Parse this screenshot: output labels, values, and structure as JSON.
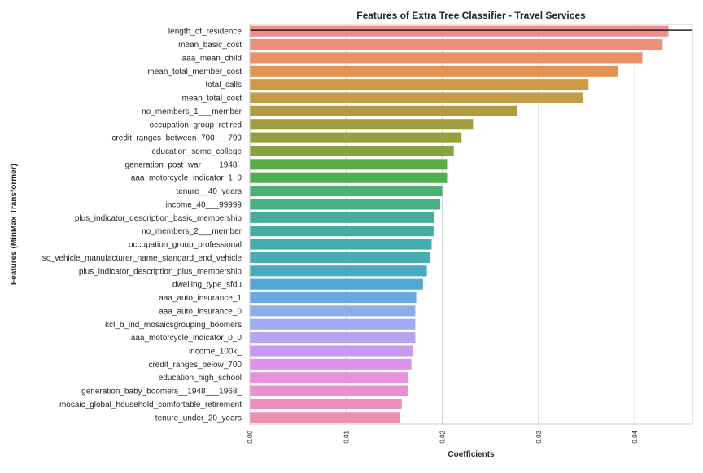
{
  "chart_data": {
    "type": "bar",
    "orientation": "horizontal",
    "title": "Features of Extra Tree Classifier - Travel Services",
    "xlabel": "Coefficients",
    "ylabel": "Features (MinMax Transformer)",
    "xlim": [
      0.0,
      0.046
    ],
    "xticks": [
      0.0,
      0.01,
      0.02,
      0.03,
      0.04
    ],
    "xtick_labels": [
      "0.00",
      "0.01",
      "0.02",
      "0.03",
      "0.04"
    ],
    "grid": true,
    "reference_line": {
      "type": "horizontal",
      "category": "length_of_residence",
      "color": "#222222"
    },
    "categories": [
      "length_of_residence",
      "mean_basic_cost",
      "aaa_mean_child",
      "mean_total_member_cost",
      "total_calls",
      "mean_total_cost",
      "no_members_1___member",
      "occupation_group_retired",
      "credit_ranges_between_700___799",
      "education_some_college",
      "generation_post_war____1948_",
      "aaa_motorcycle_indicator_1_0",
      "tenure__40_years",
      "income_40___99999",
      "plus_indicator_description_basic_membership",
      "no_members_2___member",
      "occupation_group_professional",
      "sc_vehicle_manufacturer_name_standard_end_vehicle",
      "plus_indicator_description_plus_membership",
      "dwelling_type_sfdu",
      "aaa_auto_insurance_1",
      "aaa_auto_insurance_0",
      "kcl_b_ind_mosaicsgrouping_boomers",
      "aaa_motorcycle_indicator_0_0",
      "income_100k_",
      "credit_ranges_below_700",
      "education_high_school",
      "generation_baby_boomers__1948___1968_",
      "mosaic_global_household_comfortable_retirement",
      "tenure_under_20_years"
    ],
    "values": [
      0.0435,
      0.0429,
      0.0408,
      0.0383,
      0.0352,
      0.0346,
      0.0278,
      0.0232,
      0.022,
      0.0212,
      0.0205,
      0.0205,
      0.02,
      0.0198,
      0.0192,
      0.0191,
      0.0189,
      0.0187,
      0.0184,
      0.018,
      0.0173,
      0.0172,
      0.0172,
      0.0172,
      0.017,
      0.0168,
      0.0165,
      0.0164,
      0.0158,
      0.0156
    ],
    "colors": [
      "#f08c8c",
      "#ec907a",
      "#e9926a",
      "#e39450",
      "#cf9a42",
      "#c49c45",
      "#b29a3f",
      "#a29d3c",
      "#96a03d",
      "#86a33f",
      "#5aad45",
      "#4cb050",
      "#49b173",
      "#47b088",
      "#45ae99",
      "#43ada5",
      "#44adad",
      "#46acb6",
      "#48aac2",
      "#50a8d0",
      "#6aa8e1",
      "#8caee8",
      "#a3aaf0",
      "#b7a2f0",
      "#c999ef",
      "#dc92ea",
      "#e691de",
      "#ea90cf",
      "#ec8fbe",
      "#ed8fae"
    ]
  }
}
